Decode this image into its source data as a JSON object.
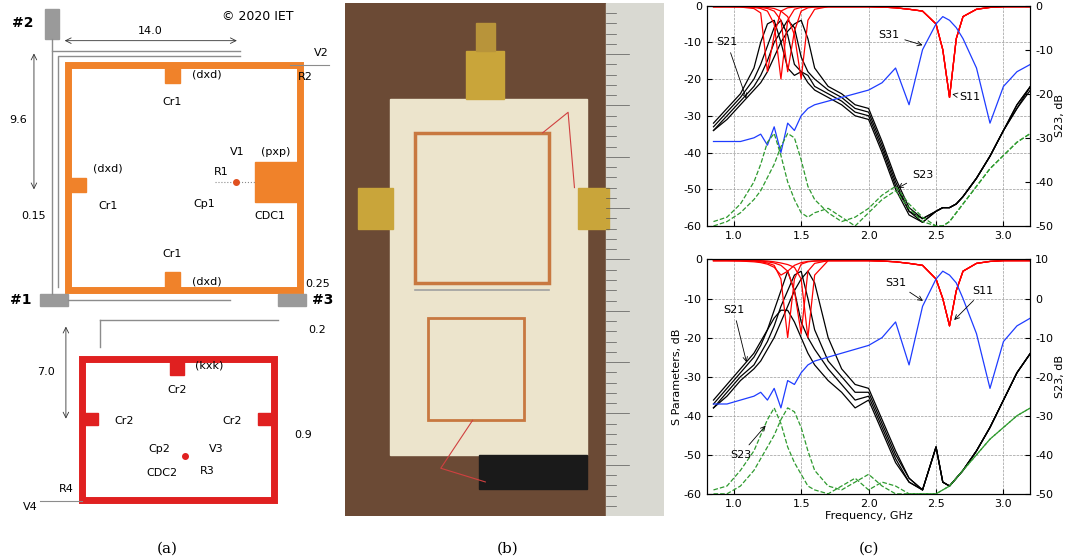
{
  "captions": [
    "(a)",
    "(b)",
    "(c)"
  ],
  "diagram": {
    "copyright": "© 2020 IET",
    "ports": [
      "#1",
      "#2",
      "#3"
    ],
    "dimensions": [
      "14.0",
      "9.6",
      "0.15",
      "0.25",
      "7.0",
      "0.2",
      "0.9"
    ],
    "resonator_1_labels": [
      "V2",
      "R2",
      "Cr1",
      "(dxd)",
      "(dxd)",
      "Cr1",
      "V1",
      "R1",
      "(pxp)",
      "Cp1",
      "CDC1",
      "Cr1",
      "(dxd)"
    ],
    "resonator_2_labels": [
      "(kxk)",
      "Cr2",
      "Cr2",
      "Cr2",
      "Cp2",
      "CDC2",
      "V3",
      "R3",
      "R4",
      "V4"
    ]
  },
  "chart_data": [
    {
      "type": "line",
      "x": [
        0.85,
        0.95,
        1.05,
        1.15,
        1.2,
        1.25,
        1.3,
        1.35,
        1.4,
        1.45,
        1.5,
        1.55,
        1.6,
        1.7,
        1.8,
        1.9,
        2.0,
        2.1,
        2.2,
        2.3,
        2.4,
        2.5,
        2.55,
        2.6,
        2.65,
        2.7,
        2.8,
        2.9,
        3.0,
        3.1,
        3.2
      ],
      "xlim": [
        0.8,
        3.2
      ],
      "xticks": [
        1.0,
        1.5,
        2.0,
        2.5,
        3.0
      ],
      "ylim": [
        -60,
        0
      ],
      "yticks": [
        -60,
        -50,
        -40,
        -30,
        -20,
        -10,
        0
      ],
      "y2lim": [
        -50,
        0
      ],
      "y2ticks": [
        -50,
        -40,
        -30,
        -20,
        -10,
        0
      ],
      "y2_label": "S23, dB",
      "grid": true,
      "series": [
        {
          "name": "S21",
          "color": "#000000",
          "line_style": "solid",
          "values": [
            -32,
            -28,
            -24,
            -17,
            -10,
            -5,
            -4,
            -10,
            -17,
            -19,
            -18,
            -21,
            -23,
            -25,
            -27,
            -30,
            -31,
            -40,
            -50,
            -57,
            -59,
            -56,
            -55,
            -55,
            -54,
            -52,
            -47,
            -41,
            -34,
            -27,
            -22
          ]
        },
        {
          "name": "S21",
          "color": "#000000",
          "line_style": "solid",
          "values": [
            -33,
            -29,
            -25,
            -20,
            -16,
            -11,
            -6,
            -4,
            -8,
            -16,
            -18,
            -19,
            -22,
            -24,
            -26,
            -29,
            -30,
            -39,
            -49,
            -56,
            -59,
            -56,
            -55,
            -55,
            -54,
            -52,
            -47,
            -41,
            -34,
            -27,
            -22
          ]
        },
        {
          "name": "S21",
          "color": "#000000",
          "line_style": "solid",
          "values": [
            -34,
            -30,
            -26,
            -22,
            -19,
            -15,
            -10,
            -7,
            -4,
            -6,
            -14,
            -18,
            -20,
            -23,
            -25,
            -28,
            -29,
            -38,
            -48,
            -56,
            -58,
            -56,
            -55,
            -55,
            -54,
            -52,
            -47,
            -41,
            -34,
            -28,
            -22
          ]
        },
        {
          "name": "S21",
          "color": "#000000",
          "line_style": "solid",
          "values": [
            -34,
            -31,
            -27,
            -23,
            -21,
            -18,
            -14,
            -10,
            -7,
            -5,
            -4,
            -9,
            -17,
            -22,
            -24,
            -27,
            -28,
            -37,
            -47,
            -55,
            -58,
            -56,
            -55,
            -55,
            -54,
            -52,
            -47,
            -41,
            -34,
            -28,
            -23
          ]
        },
        {
          "name": "S11",
          "color": "#ff0000",
          "line_style": "solid",
          "values": [
            -0.3,
            -0.3,
            -0.4,
            -0.8,
            -2,
            -18,
            -8,
            -1.5,
            -0.6,
            -0.4,
            -0.3,
            -0.3,
            -0.3,
            -0.3,
            -0.3,
            -0.3,
            -0.3,
            -0.4,
            -0.6,
            -1,
            -1.5,
            -5,
            -12,
            -25,
            -9,
            -3,
            -1,
            -0.5,
            -0.3,
            -0.3,
            -0.3
          ]
        },
        {
          "name": "S11",
          "color": "#ff0000",
          "line_style": "solid",
          "values": [
            -0.3,
            -0.3,
            -0.3,
            -0.5,
            -0.8,
            -1.5,
            -5,
            -20,
            -4,
            -1,
            -0.5,
            -0.4,
            -0.3,
            -0.3,
            -0.3,
            -0.3,
            -0.3,
            -0.4,
            -0.6,
            -1,
            -1.5,
            -5,
            -12,
            -25,
            -9,
            -3,
            -1,
            -0.5,
            -0.3,
            -0.3,
            -0.3
          ]
        },
        {
          "name": "S11",
          "color": "#ff0000",
          "line_style": "solid",
          "values": [
            -0.3,
            -0.3,
            -0.3,
            -0.4,
            -0.5,
            -0.8,
            -1.5,
            -4,
            -18,
            -7,
            -1.5,
            -0.6,
            -0.4,
            -0.3,
            -0.3,
            -0.3,
            -0.3,
            -0.4,
            -0.6,
            -1,
            -1.5,
            -5,
            -12,
            -25,
            -9,
            -3,
            -1,
            -0.5,
            -0.3,
            -0.3,
            -0.3
          ]
        },
        {
          "name": "S11",
          "color": "#ff0000",
          "line_style": "solid",
          "values": [
            -0.3,
            -0.3,
            -0.3,
            -0.3,
            -0.4,
            -0.5,
            -0.8,
            -1.5,
            -3,
            -8,
            -20,
            -4,
            -1,
            -0.3,
            -0.3,
            -0.3,
            -0.3,
            -0.4,
            -0.6,
            -1,
            -1.5,
            -5,
            -12,
            -25,
            -9,
            -3,
            -1,
            -0.5,
            -0.3,
            -0.3,
            -0.3
          ]
        },
        {
          "name": "S31",
          "color": "#1e3cff",
          "line_style": "solid",
          "values": [
            -37,
            -37,
            -37,
            -36,
            -35,
            -38,
            -33,
            -40,
            -32,
            -34,
            -30,
            -28,
            -27,
            -26,
            -25,
            -24,
            -23,
            -21,
            -17,
            -27,
            -12,
            -5,
            -3,
            -4,
            -6,
            -9,
            -17,
            -32,
            -22,
            -18,
            -16
          ]
        },
        {
          "name": "S23",
          "color": "#2e9a2e",
          "line_style": "dashed",
          "axis": "y2",
          "values": [
            -49,
            -48,
            -45,
            -40,
            -36,
            -31,
            -29,
            -34,
            -40,
            -44,
            -47,
            -48,
            -47,
            -46,
            -48,
            -50,
            -47,
            -44,
            -42,
            -46,
            -49,
            -50,
            -50,
            -49,
            -47,
            -45,
            -41,
            -37,
            -34,
            -31,
            -29
          ]
        },
        {
          "name": "S23",
          "color": "#2e9a2e",
          "line_style": "dashed",
          "axis": "y2",
          "values": [
            -50,
            -49,
            -47,
            -44,
            -42,
            -39,
            -36,
            -32,
            -29,
            -30,
            -35,
            -41,
            -44,
            -47,
            -49,
            -48,
            -46,
            -43,
            -41,
            -45,
            -48,
            -50,
            -50,
            -49,
            -47,
            -45,
            -41,
            -37,
            -34,
            -31,
            -29
          ]
        }
      ],
      "annotations": [
        {
          "text": "S21",
          "xy": [
            1.1,
            -26
          ],
          "xytext": [
            0.95,
            -10
          ]
        },
        {
          "text": "S31",
          "xy": [
            2.42,
            -11
          ],
          "xytext": [
            2.15,
            -8
          ]
        },
        {
          "text": "S11",
          "xy": [
            2.6,
            -24
          ],
          "xytext": [
            2.75,
            -25
          ]
        },
        {
          "text": "S23",
          "xy": [
            2.2,
            -50
          ],
          "xytext": [
            2.4,
            -46
          ]
        }
      ]
    },
    {
      "type": "line",
      "x": [
        0.85,
        0.95,
        1.05,
        1.15,
        1.2,
        1.25,
        1.3,
        1.35,
        1.4,
        1.45,
        1.5,
        1.55,
        1.6,
        1.7,
        1.8,
        1.9,
        2.0,
        2.1,
        2.2,
        2.3,
        2.4,
        2.5,
        2.55,
        2.6,
        2.65,
        2.7,
        2.8,
        2.9,
        3.0,
        3.1,
        3.2
      ],
      "xlim": [
        0.8,
        3.2
      ],
      "xticks": [
        1.0,
        1.5,
        2.0,
        2.5,
        3.0
      ],
      "ylim": [
        -60,
        0
      ],
      "yticks": [
        -60,
        -50,
        -40,
        -30,
        -20,
        -10,
        0
      ],
      "y2lim": [
        -50,
        10
      ],
      "y2ticks": [
        -50,
        -40,
        -30,
        -20,
        -10,
        0,
        10
      ],
      "x_label": "Frequency, GHz",
      "y_label": "S Parameters, dB",
      "y2_label": "S23, dB",
      "grid": true,
      "series": [
        {
          "name": "S21",
          "color": "#000000",
          "line_style": "solid",
          "values": [
            -36,
            -32,
            -28,
            -24,
            -21,
            -18,
            -15,
            -13,
            -13,
            -16,
            -20,
            -24,
            -27,
            -31,
            -34,
            -38,
            -36,
            -44,
            -52,
            -57,
            -59,
            -48,
            -57,
            -58,
            -56,
            -54,
            -49,
            -43,
            -36,
            -29,
            -24
          ]
        },
        {
          "name": "S21",
          "color": "#000000",
          "line_style": "solid",
          "values": [
            -37,
            -33,
            -29,
            -25,
            -22,
            -18,
            -13,
            -8,
            -3,
            -8,
            -16,
            -20,
            -23,
            -28,
            -32,
            -36,
            -35,
            -43,
            -51,
            -57,
            -59,
            -48,
            -57,
            -58,
            -56,
            -54,
            -49,
            -43,
            -36,
            -29,
            -24
          ]
        },
        {
          "name": "S21",
          "color": "#000000",
          "line_style": "solid",
          "values": [
            -38,
            -34,
            -30,
            -27,
            -24,
            -21,
            -17,
            -12,
            -8,
            -4,
            -3,
            -10,
            -18,
            -26,
            -30,
            -34,
            -34,
            -42,
            -50,
            -56,
            -59,
            -48,
            -57,
            -58,
            -56,
            -54,
            -49,
            -43,
            -36,
            -29,
            -24
          ]
        },
        {
          "name": "S21",
          "color": "#000000",
          "line_style": "solid",
          "values": [
            -38,
            -35,
            -31,
            -28,
            -26,
            -23,
            -20,
            -16,
            -12,
            -8,
            -5,
            -3,
            -6,
            -20,
            -28,
            -32,
            -33,
            -41,
            -49,
            -56,
            -59,
            -48,
            -57,
            -58,
            -56,
            -54,
            -49,
            -43,
            -36,
            -29,
            -24
          ]
        },
        {
          "name": "S11",
          "color": "#ff0000",
          "line_style": "solid",
          "values": [
            -0.3,
            -0.3,
            -0.4,
            -0.6,
            -0.8,
            -1.2,
            -2,
            -4,
            -3,
            -1.5,
            -0.8,
            -0.5,
            -0.4,
            -0.3,
            -0.3,
            -0.3,
            -0.3,
            -0.4,
            -0.6,
            -1,
            -1.5,
            -5,
            -10,
            -17,
            -8,
            -3,
            -1,
            -0.5,
            -0.3,
            -0.3,
            -0.3
          ]
        },
        {
          "name": "S11",
          "color": "#ff0000",
          "line_style": "solid",
          "values": [
            -0.3,
            -0.3,
            -0.3,
            -0.4,
            -0.6,
            -0.9,
            -1.5,
            -5,
            -20,
            -5,
            -1.2,
            -0.6,
            -0.4,
            -0.3,
            -0.3,
            -0.3,
            -0.3,
            -0.4,
            -0.6,
            -1,
            -1.5,
            -5,
            -10,
            -17,
            -8,
            -3,
            -1,
            -0.5,
            -0.3,
            -0.3,
            -0.3
          ]
        },
        {
          "name": "S11",
          "color": "#ff0000",
          "line_style": "solid",
          "values": [
            -0.3,
            -0.3,
            -0.3,
            -0.3,
            -0.4,
            -0.6,
            -0.9,
            -1.5,
            -3,
            -8,
            -19,
            -3,
            -1,
            -0.3,
            -0.3,
            -0.3,
            -0.3,
            -0.4,
            -0.6,
            -1,
            -1.5,
            -5,
            -10,
            -17,
            -8,
            -3,
            -1,
            -0.5,
            -0.3,
            -0.3,
            -0.3
          ]
        },
        {
          "name": "S11",
          "color": "#ff0000",
          "line_style": "solid",
          "values": [
            -0.3,
            -0.3,
            -0.3,
            -0.3,
            -0.3,
            -0.4,
            -0.6,
            -0.9,
            -1.3,
            -2,
            -5,
            -20,
            -4,
            -0.3,
            -0.3,
            -0.3,
            -0.3,
            -0.4,
            -0.6,
            -1,
            -1.5,
            -5,
            -10,
            -17,
            -8,
            -3,
            -1,
            -0.5,
            -0.3,
            -0.3,
            -0.3
          ]
        },
        {
          "name": "S31",
          "color": "#1e3cff",
          "line_style": "solid",
          "values": [
            -37,
            -37,
            -36,
            -35,
            -34,
            -36,
            -33,
            -38,
            -31,
            -32,
            -29,
            -27,
            -26,
            -25,
            -24,
            -23,
            -22,
            -20,
            -16,
            -27,
            -12,
            -5,
            -3,
            -4,
            -6,
            -10,
            -19,
            -33,
            -21,
            -17,
            -15
          ]
        },
        {
          "name": "S23",
          "color": "#2e9a2e",
          "line_style": "dashed",
          "axis": "y2",
          "values": [
            -49,
            -48,
            -44,
            -39,
            -35,
            -31,
            -28,
            -32,
            -38,
            -42,
            -45,
            -48,
            -49,
            -50,
            -48,
            -46,
            -49,
            -47,
            -48,
            -50,
            -50,
            -50,
            -49,
            -48,
            -46,
            -44,
            -40,
            -36,
            -33,
            -30,
            -28
          ]
        },
        {
          "name": "S23",
          "color": "#2e9a2e",
          "line_style": "dashed",
          "axis": "y2",
          "values": [
            -50,
            -50,
            -48,
            -44,
            -41,
            -38,
            -35,
            -31,
            -28,
            -29,
            -33,
            -39,
            -44,
            -48,
            -49,
            -47,
            -45,
            -48,
            -50,
            -50,
            -50,
            -50,
            -49,
            -48,
            -46,
            -44,
            -40,
            -36,
            -33,
            -30,
            -28
          ]
        }
      ],
      "annotations": [
        {
          "text": "S21",
          "xy": [
            1.1,
            -27
          ],
          "xytext": [
            1.0,
            -13
          ]
        },
        {
          "text": "S31",
          "xy": [
            2.42,
            -11
          ],
          "xytext": [
            2.2,
            -6
          ]
        },
        {
          "text": "S11",
          "xy": [
            2.62,
            -16
          ],
          "xytext": [
            2.85,
            -8
          ]
        },
        {
          "text": "S23",
          "xy": [
            1.25,
            -42
          ],
          "xytext": [
            1.05,
            -50
          ]
        }
      ]
    }
  ]
}
